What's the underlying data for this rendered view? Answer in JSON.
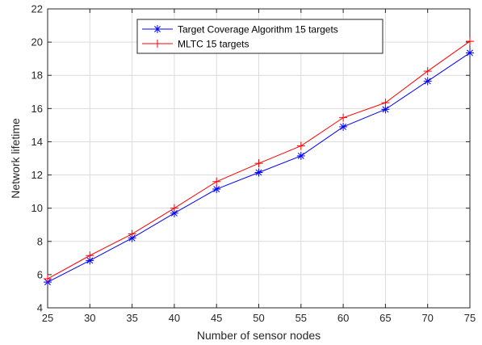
{
  "chart_data": {
    "type": "line",
    "xlabel": "Number of sensor nodes",
    "ylabel": "Network lifetime",
    "x": [
      25,
      30,
      35,
      40,
      45,
      50,
      55,
      60,
      65,
      70,
      75
    ],
    "xlim": [
      25,
      75
    ],
    "ylim": [
      4,
      22
    ],
    "xticks": [
      25,
      30,
      35,
      40,
      45,
      50,
      55,
      60,
      65,
      70,
      75
    ],
    "yticks": [
      4,
      6,
      8,
      10,
      12,
      14,
      16,
      18,
      20,
      22
    ],
    "grid": true,
    "legend_position": "top-center",
    "series": [
      {
        "name": "Target Coverage Algorithm 15 targets",
        "color": "#0000ff",
        "marker": "asterisk",
        "values": [
          5.55,
          6.85,
          8.2,
          9.7,
          11.15,
          12.15,
          13.15,
          14.9,
          15.95,
          17.65,
          19.35
        ]
      },
      {
        "name": "MLTC 15 targets",
        "color": "#ff0000",
        "marker": "plus",
        "values": [
          5.75,
          7.15,
          8.45,
          10.0,
          11.6,
          12.7,
          13.75,
          15.45,
          16.35,
          18.25,
          20.05
        ]
      }
    ]
  }
}
